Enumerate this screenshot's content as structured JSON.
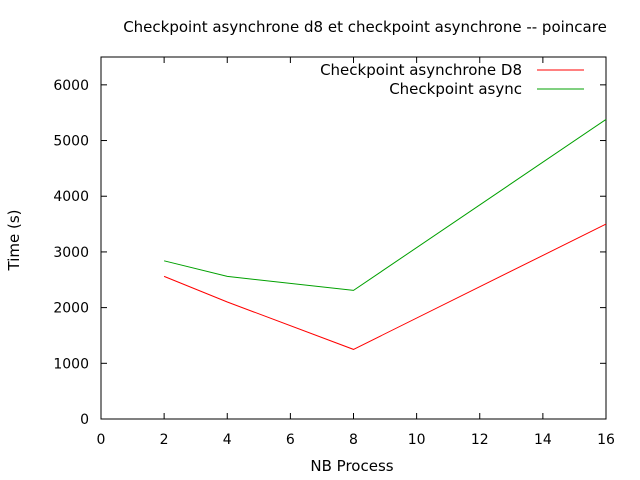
{
  "chart_data": {
    "type": "line",
    "title": "Checkpoint asynchrone d8 et checkpoint asynchrone -- poincare",
    "xlabel": "NB Process",
    "ylabel": "Time (s)",
    "xlim": [
      0,
      16
    ],
    "ylim": [
      0,
      6500
    ],
    "xticks": [
      0,
      2,
      4,
      6,
      8,
      10,
      12,
      14,
      16
    ],
    "yticks": [
      0,
      1000,
      2000,
      3000,
      4000,
      5000,
      6000
    ],
    "grid": false,
    "legend_position": "top-right",
    "x": [
      2,
      4,
      8,
      16
    ],
    "series": [
      {
        "name": "Checkpoint asynchrone D8",
        "color": "#ff0000",
        "values": [
          2560,
          2100,
          1250,
          3500
        ]
      },
      {
        "name": "Checkpoint async",
        "color": "#00a000",
        "values": [
          2840,
          2560,
          2310,
          5380
        ]
      }
    ]
  }
}
